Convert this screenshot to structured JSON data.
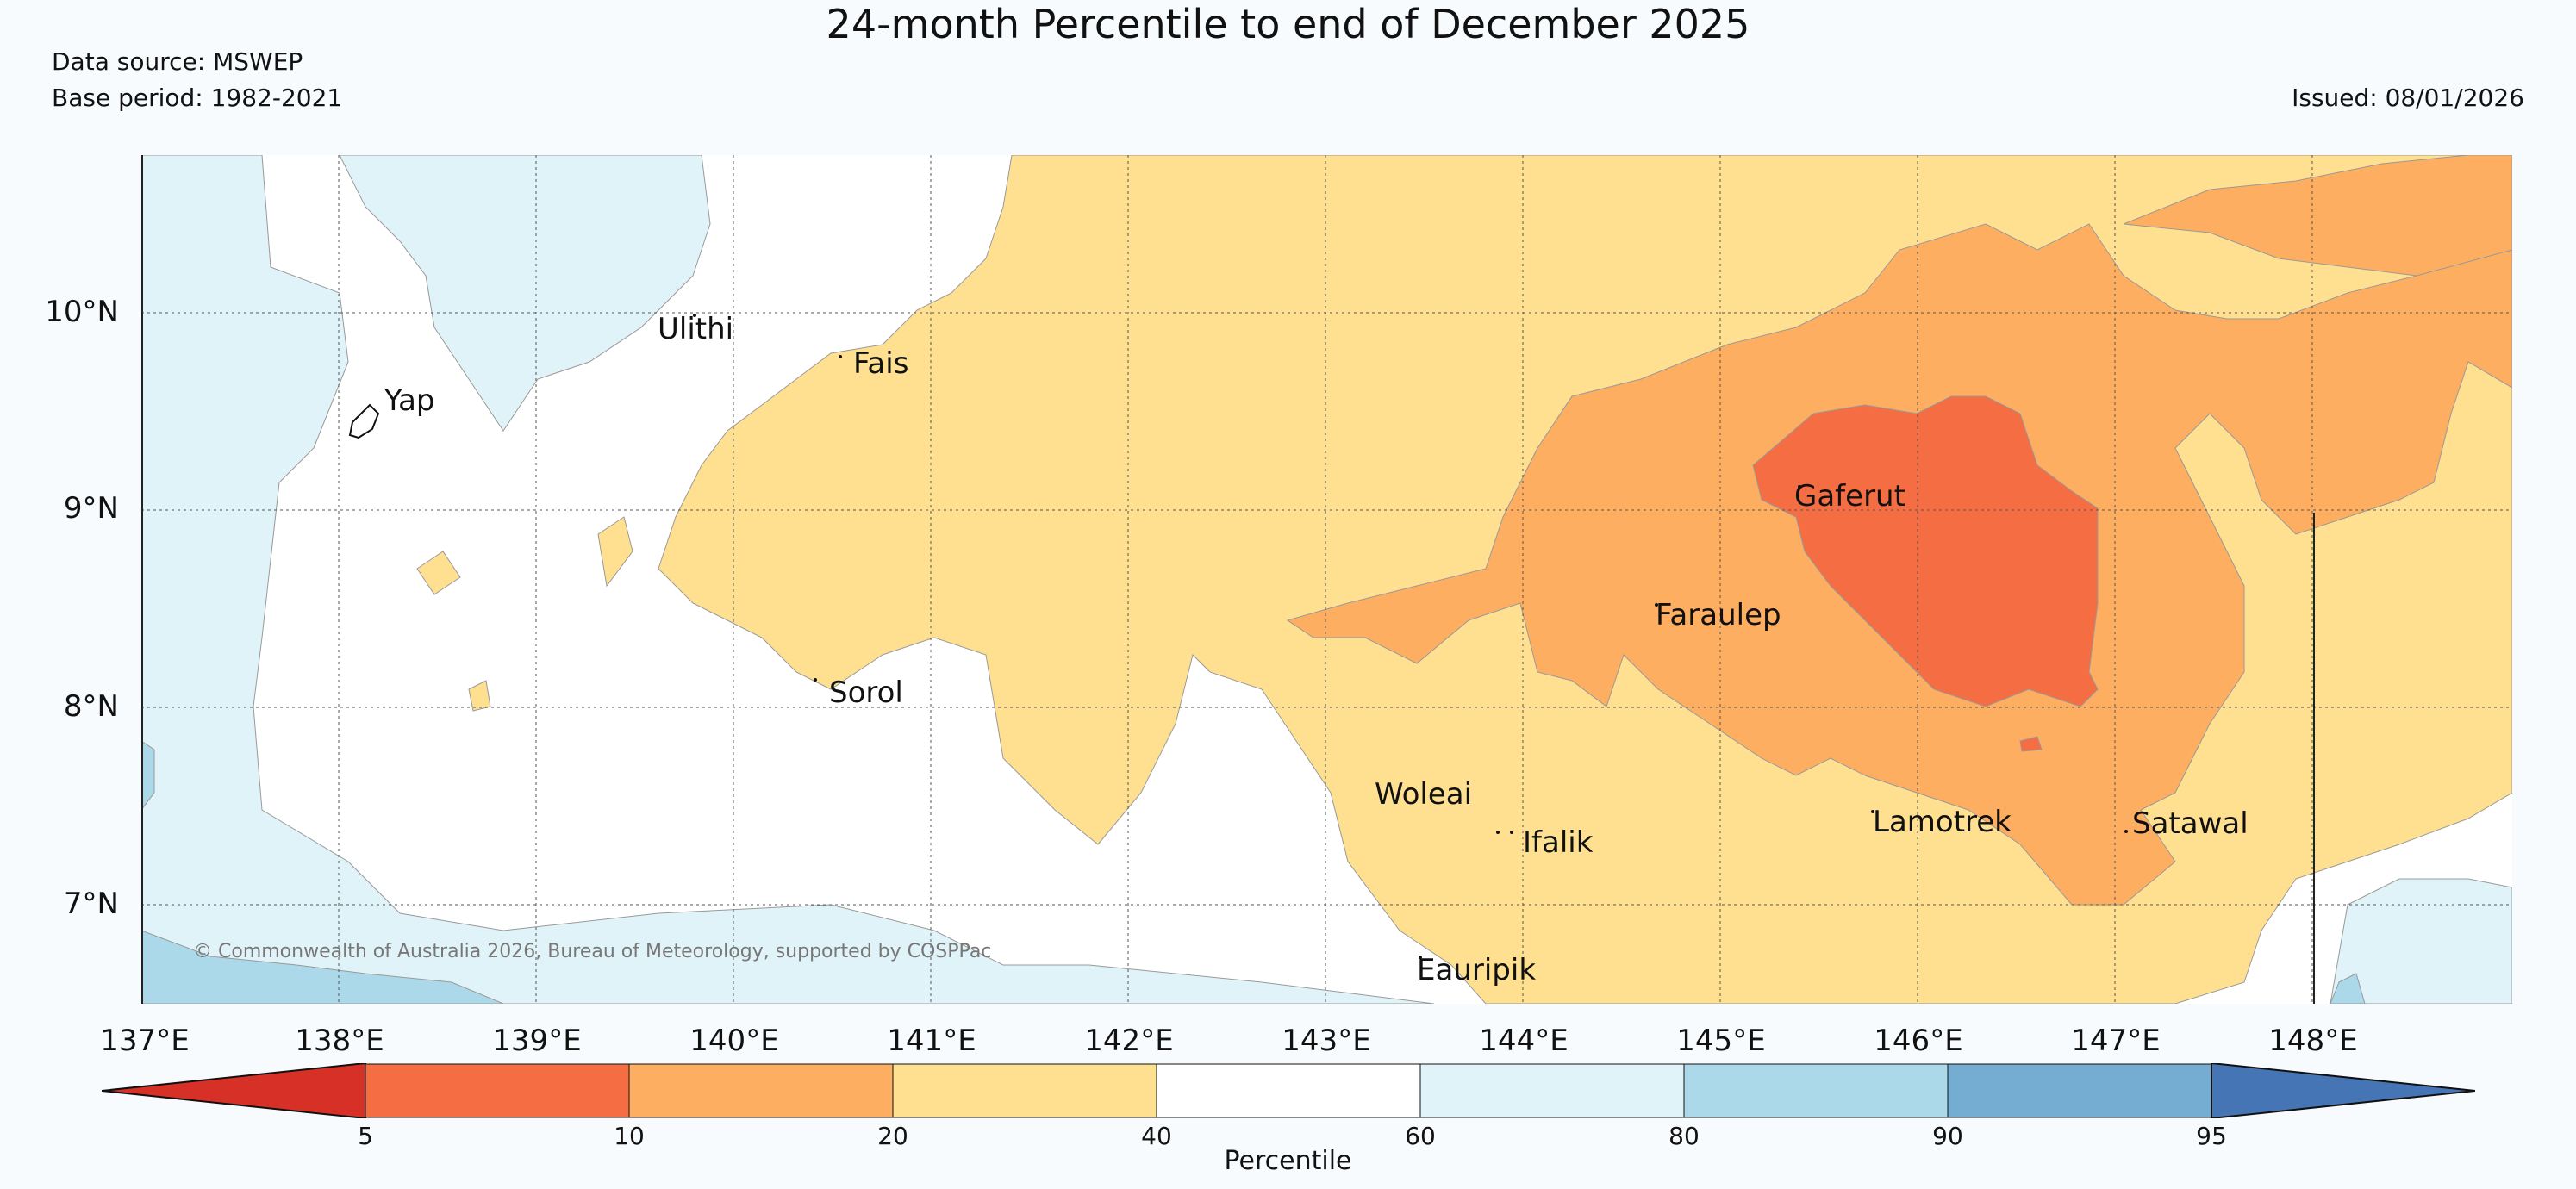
{
  "title": "24-month Percentile to end of December 2025",
  "data_source": "Data source: MSWEP",
  "base_period": "Base period: 1982-2021",
  "issued": "Issued: 08/01/2026",
  "copyright": "© Commonwealth of Australia 2026, Bureau of Meteorology, supported by COSPPac",
  "lat_labels": [
    "10°N",
    "9°N",
    "8°N",
    "7°N"
  ],
  "lon_labels": [
    "137°E",
    "138°E",
    "139°E",
    "140°E",
    "141°E",
    "142°E",
    "143°E",
    "144°E",
    "145°E",
    "146°E",
    "147°E",
    "148°E"
  ],
  "places": [
    {
      "name": "Yap"
    },
    {
      "name": "Ulithi"
    },
    {
      "name": "Fais"
    },
    {
      "name": "Sorol"
    },
    {
      "name": "Gaferut"
    },
    {
      "name": "Faraulep"
    },
    {
      "name": "Woleai"
    },
    {
      "name": "Ifalik"
    },
    {
      "name": "Lamotrek"
    },
    {
      "name": "Satawal"
    },
    {
      "name": "Eauripik"
    }
  ],
  "colorbar": {
    "title": "Percentile",
    "ticks": [
      "5",
      "10",
      "20",
      "40",
      "60",
      "80",
      "90",
      "95"
    ],
    "colors": [
      "#d73027",
      "#f46d43",
      "#fdae61",
      "#fee090",
      "#ffffff",
      "#e0f3f8",
      "#abd9e9",
      "#74add1",
      "#4575b4"
    ]
  }
}
